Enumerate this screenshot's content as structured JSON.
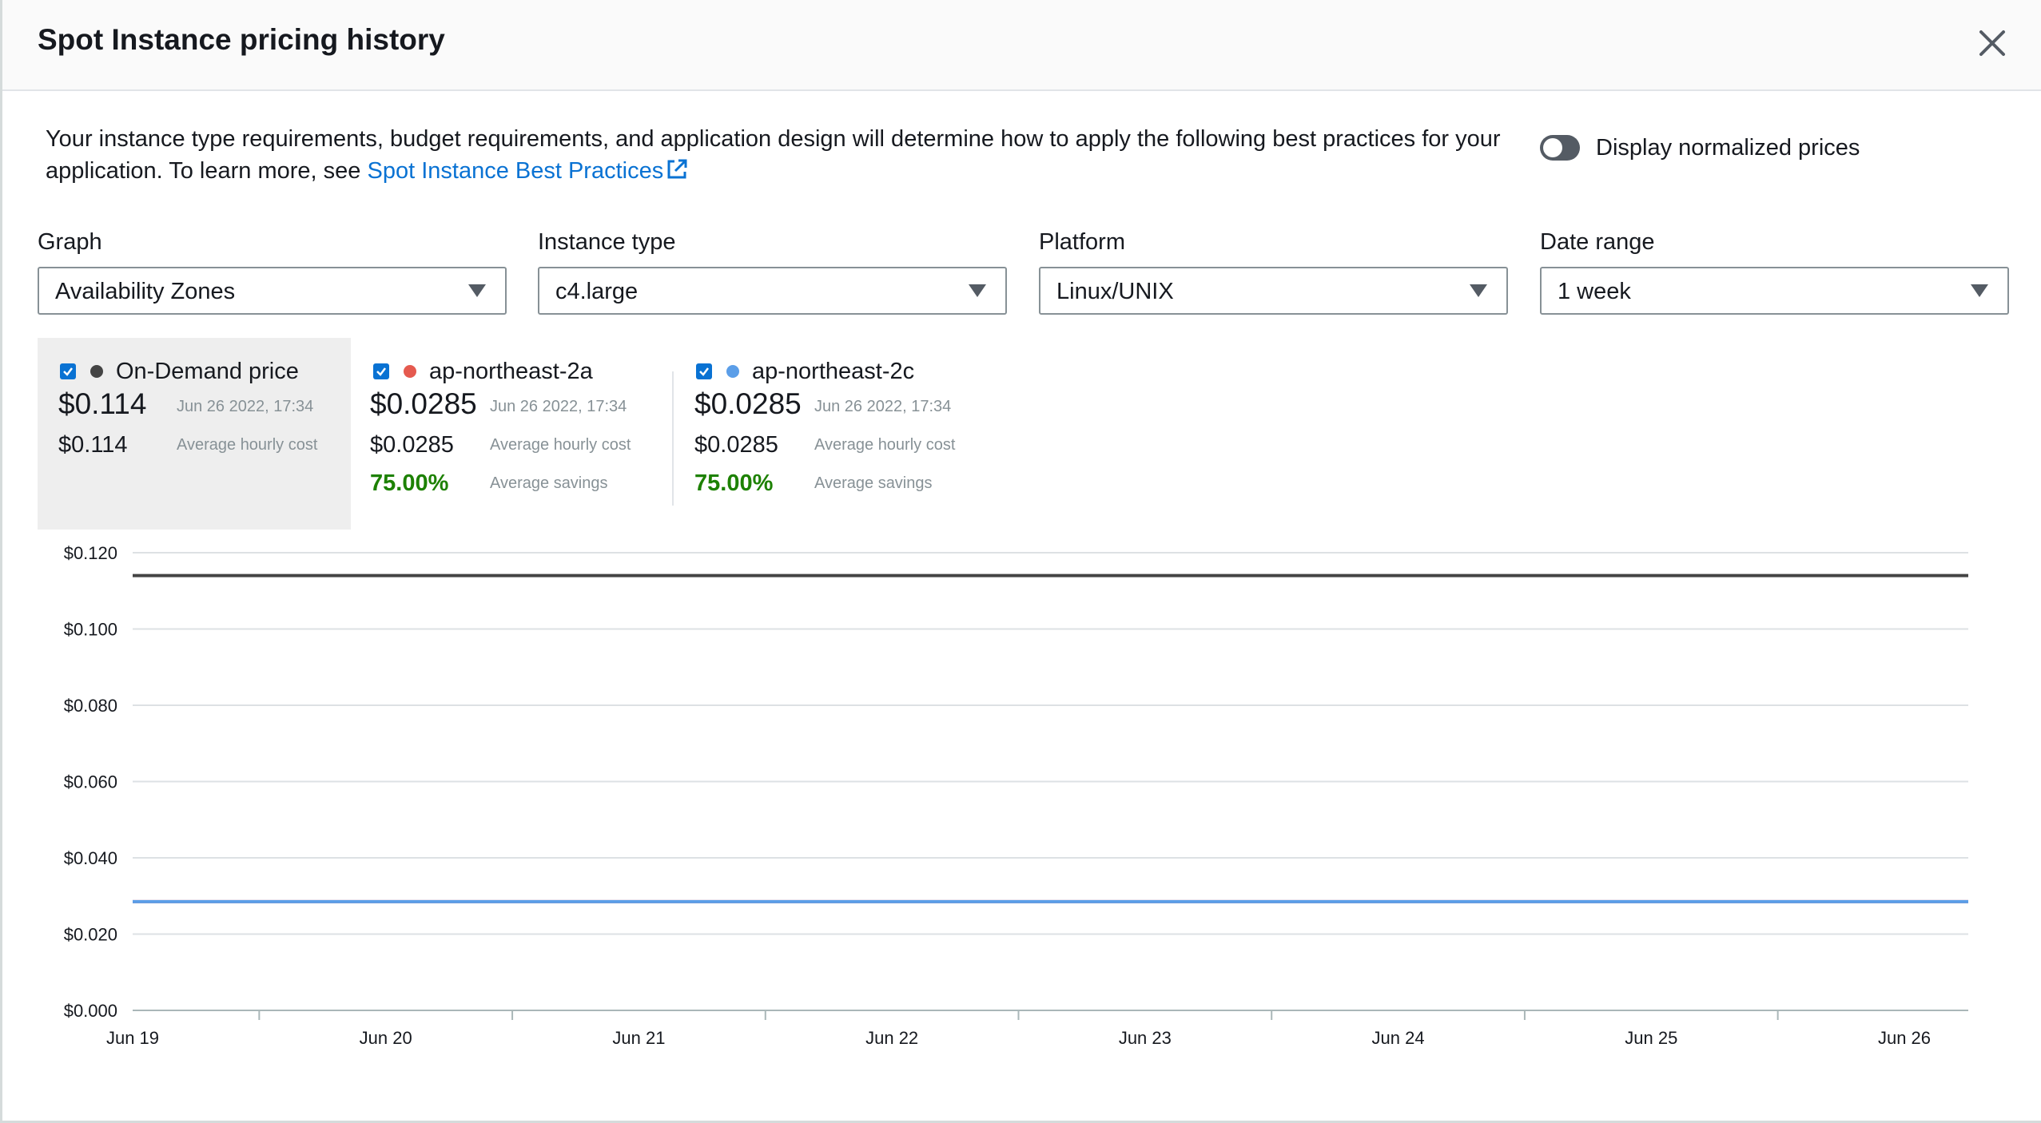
{
  "modal": {
    "title": "Spot Instance pricing history",
    "close_label": "Close"
  },
  "description": {
    "text": "Your instance type requirements, budget requirements, and application design will determine how to apply the following best practices for your application. To learn more, see ",
    "link": "Spot Instance Best Practices"
  },
  "toggle": {
    "label": "Display normalized prices",
    "on": false
  },
  "filters": [
    {
      "label": "Graph",
      "value": "Availability Zones"
    },
    {
      "label": "Instance type",
      "value": "c4.large"
    },
    {
      "label": "Platform",
      "value": "Linux/UNIX"
    },
    {
      "label": "Date range",
      "value": "1 week"
    }
  ],
  "legend": [
    {
      "name": "On-Demand price",
      "color": "#444444",
      "price": "$0.114",
      "timestamp": "Jun 26 2022, 17:34",
      "avg_cost": "$0.114",
      "avg_cost_label": "Average hourly cost",
      "checked": true
    },
    {
      "name": "ap-northeast-2a",
      "color": "#e55a4f",
      "price": "$0.0285",
      "timestamp": "Jun 26 2022, 17:34",
      "avg_cost": "$0.0285",
      "avg_cost_label": "Average hourly cost",
      "savings": "75.00%",
      "savings_label": "Average savings",
      "checked": true
    },
    {
      "name": "ap-northeast-2c",
      "color": "#5b9ee8",
      "price": "$0.0285",
      "timestamp": "Jun 26 2022, 17:34",
      "avg_cost": "$0.0285",
      "avg_cost_label": "Average hourly cost",
      "savings": "75.00%",
      "savings_label": "Average savings",
      "checked": true
    }
  ],
  "chart_data": {
    "type": "line",
    "x": [
      "Jun 19",
      "Jun 20",
      "Jun 21",
      "Jun 22",
      "Jun 23",
      "Jun 24",
      "Jun 25",
      "Jun 26"
    ],
    "ylim": [
      0,
      0.12
    ],
    "yticks": [
      "$0.000",
      "$0.020",
      "$0.040",
      "$0.060",
      "$0.080",
      "$0.100",
      "$0.120"
    ],
    "grid": true,
    "series": [
      {
        "name": "On-Demand price",
        "color": "#444444",
        "values": [
          0.114,
          0.114,
          0.114,
          0.114,
          0.114,
          0.114,
          0.114,
          0.114
        ]
      },
      {
        "name": "ap-northeast-2a",
        "color": "#e55a4f",
        "values": [
          0.0285,
          0.0285,
          0.0285,
          0.0285,
          0.0285,
          0.0285,
          0.0285,
          0.0285
        ]
      },
      {
        "name": "ap-northeast-2c",
        "color": "#5b9ee8",
        "values": [
          0.0285,
          0.0285,
          0.0285,
          0.0285,
          0.0285,
          0.0285,
          0.0285,
          0.0285
        ]
      }
    ]
  }
}
